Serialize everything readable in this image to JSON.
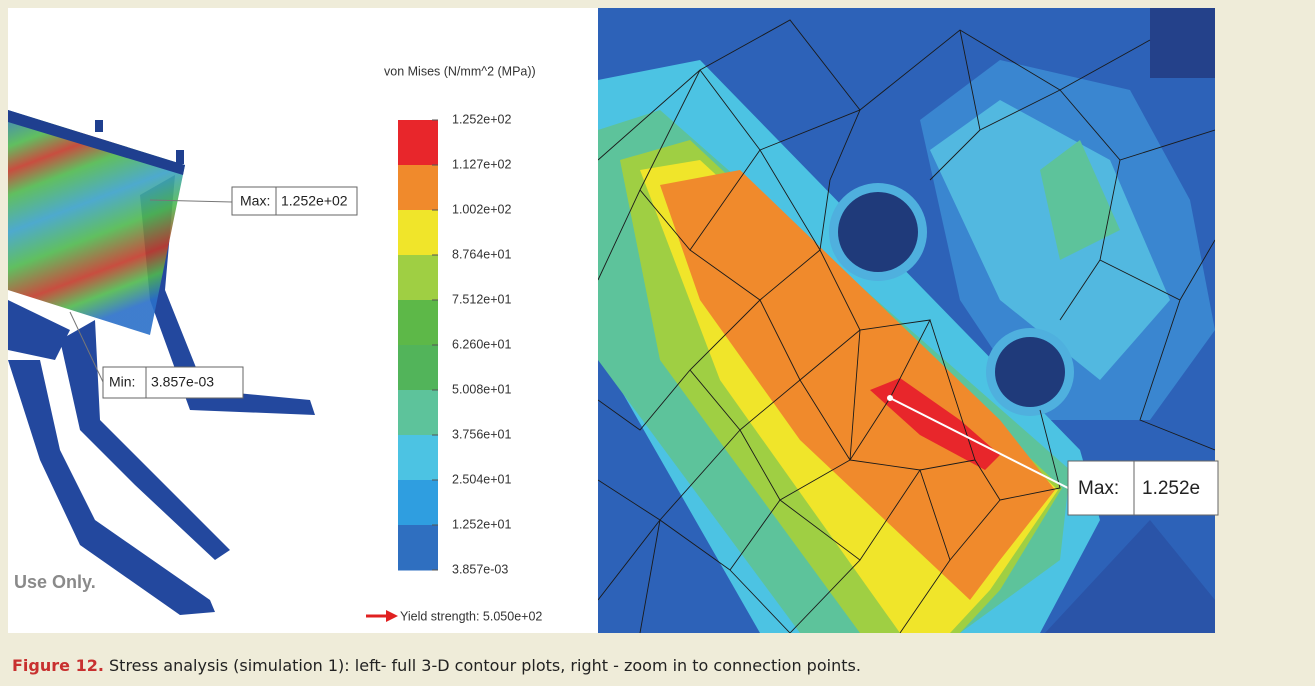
{
  "figure": {
    "left_panel": {
      "watermark": "Use Only.",
      "max_label": "Max:",
      "max_value": "1.252e+02",
      "min_label": "Min:",
      "min_value": "3.857e-03"
    },
    "legend": {
      "title": "von Mises (N/mm^2 (MPa))",
      "levels": [
        "1.252e+02",
        "1.127e+02",
        "1.002e+02",
        "8.764e+01",
        "7.512e+01",
        "6.260e+01",
        "5.008e+01",
        "3.756e+01",
        "2.504e+01",
        "1.252e+01",
        "3.857e-03"
      ],
      "band_colors": [
        "#e8262b",
        "#f08a2c",
        "#f0e52a",
        "#9fcf43",
        "#5db848",
        "#52b45a",
        "#5dc39b",
        "#4cc3e3",
        "#2f9ee0",
        "#2f6fc0"
      ],
      "yield_label": "Yield strength: 5.050e+02"
    },
    "right_panel": {
      "max_label": "Max:",
      "max_value": "1.252e"
    },
    "caption": {
      "label": "Figure 12.",
      "text": "Stress analysis (simulation 1): left- full 3-D contour plots, right - zoom in to connection points."
    }
  }
}
